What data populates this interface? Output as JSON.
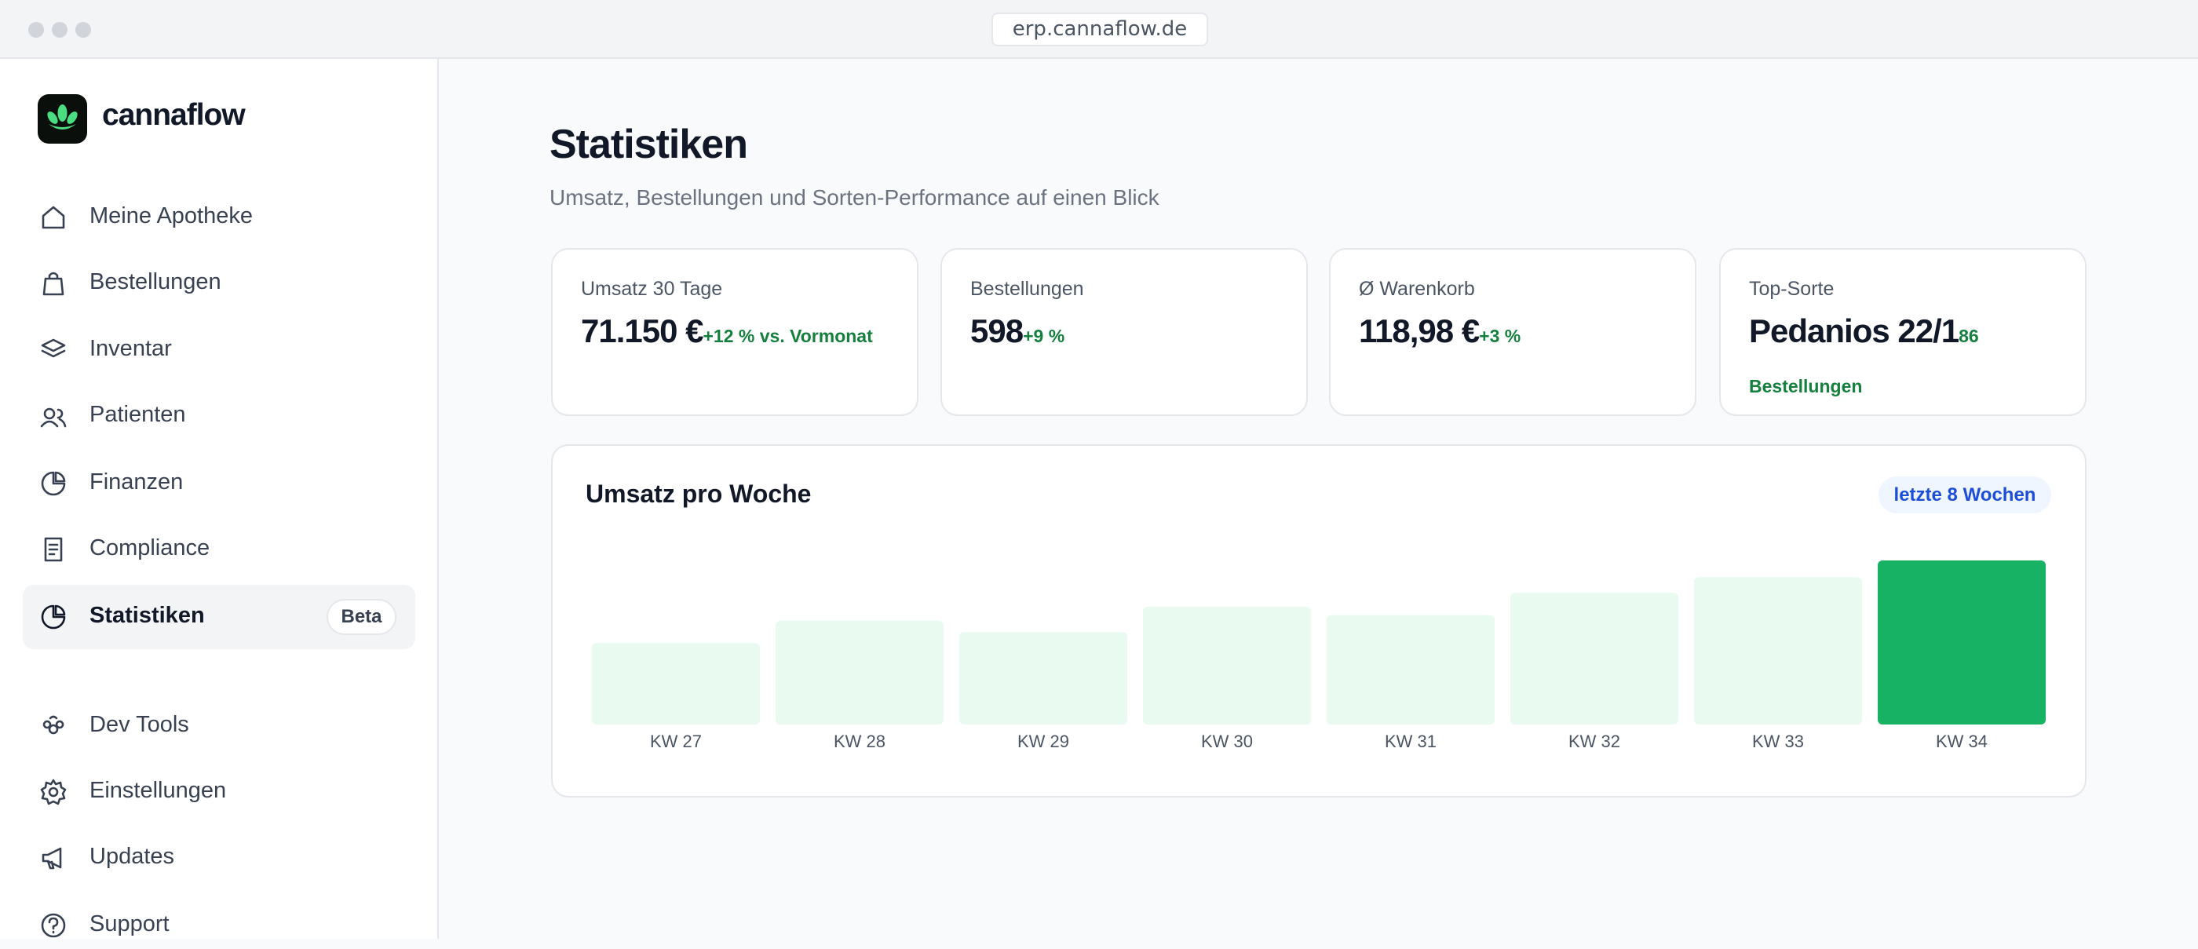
{
  "browser": {
    "url": "erp.cannaflow.de"
  },
  "sidebar": {
    "brand": "cannaflow",
    "nav": [
      "Meine Apotheke",
      "Bestellungen",
      "Inventar",
      "Patienten",
      "Finanzen",
      "Compliance",
      "Statistiken"
    ],
    "badge": "Beta",
    "nav_bottom": [
      "Dev Tools",
      "Einstellungen",
      "Updates",
      "Support"
    ]
  },
  "header": {
    "title": "Statistiken",
    "subtitle": "Umsatz, Bestellungen und Sorten-Performance auf einen Blick"
  },
  "cards": [
    {
      "label": "Umsatz 30 Tage",
      "value": "71.150 €",
      "delta": "+12 % vs. Vormonat"
    },
    {
      "label": "Bestellungen",
      "value": "598",
      "delta": "+9 %"
    },
    {
      "label": "Ø Warenkorb",
      "value": "118,98 €",
      "delta": "+3 %"
    },
    {
      "label": "Top-Sorte",
      "value": "Pedanios 22/1",
      "delta": "86 Bestellungen"
    }
  ],
  "chart_data": {
    "type": "bar",
    "title": "Umsatz pro Woche",
    "badge": "letzte 8 Wochen",
    "categories": [
      "KW 27",
      "KW 28",
      "KW 29",
      "KW 30",
      "KW 31",
      "KW 32",
      "KW 33",
      "KW 34"
    ],
    "values": [
      58,
      74,
      66,
      84,
      78,
      94,
      105,
      117
    ],
    "colors": [
      "#e9fbf0",
      "#e9fbf0",
      "#e9fbf0",
      "#e9fbf0",
      "#e9fbf0",
      "#e9fbf0",
      "#e9fbf0",
      "#18b264"
    ]
  }
}
